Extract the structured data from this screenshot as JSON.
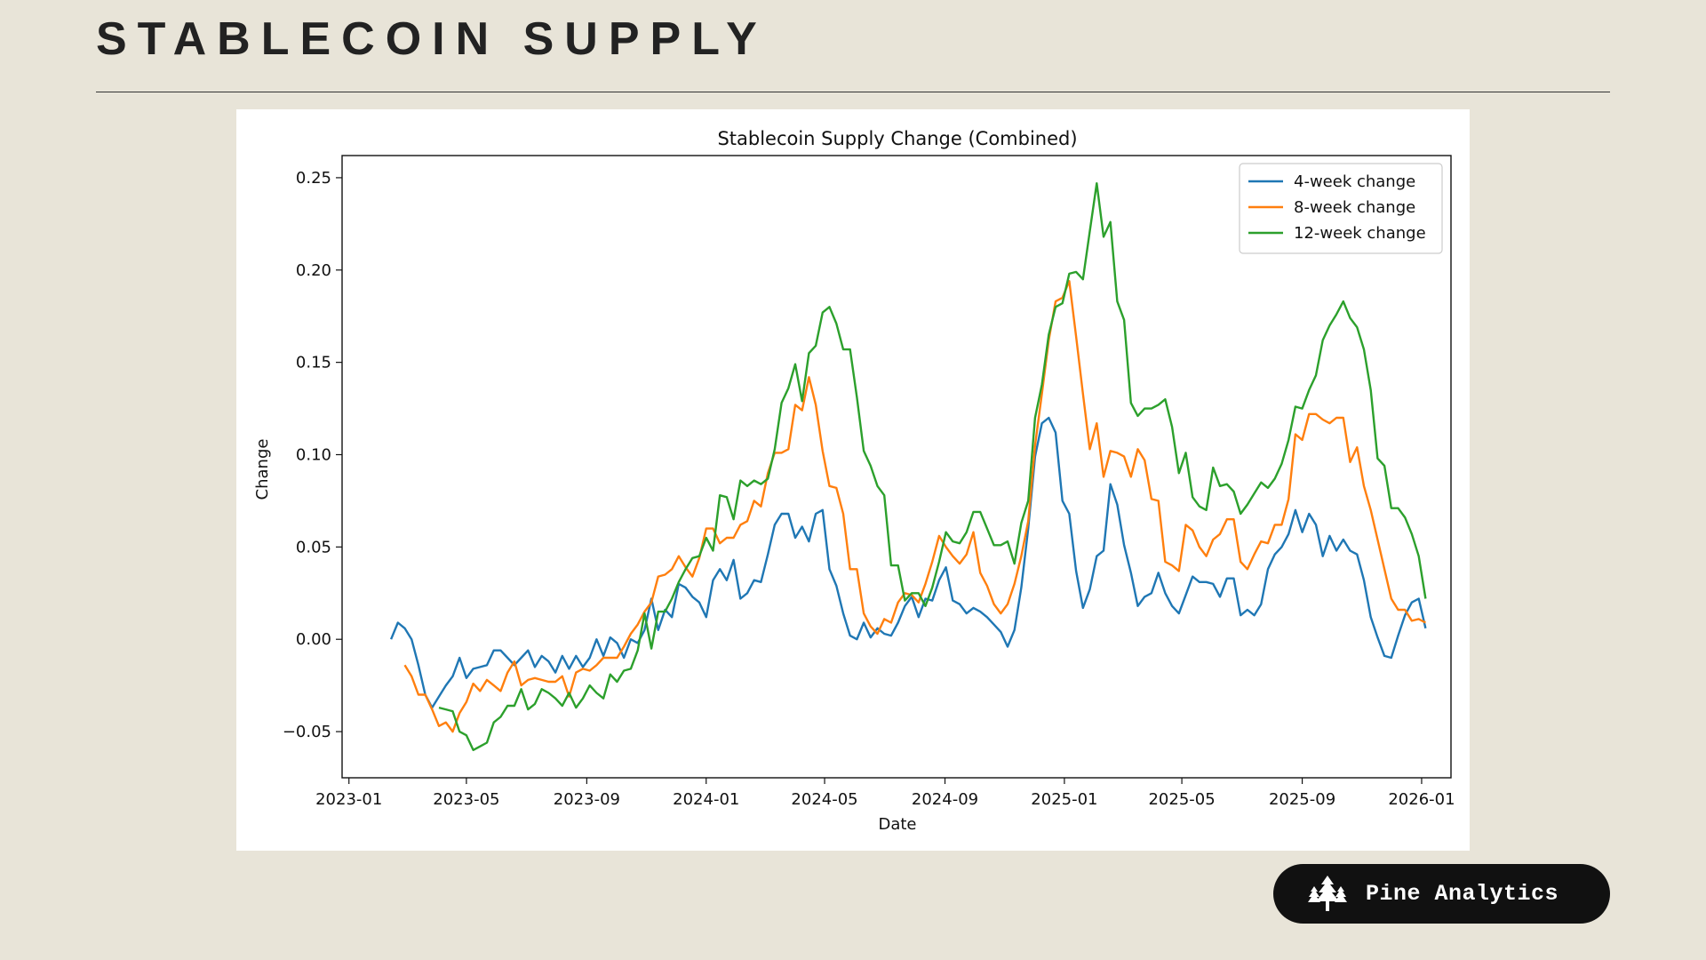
{
  "page": {
    "title": "STABLECOIN SUPPLY"
  },
  "brand": {
    "name": "Pine Analytics",
    "icon": "pine-tree-icon"
  },
  "chart_data": {
    "type": "line",
    "title": "Stablecoin Supply Change (Combined)",
    "xlabel": "Date",
    "ylabel": "Change",
    "xlim": [
      "2022-12-25",
      "2026-01-31"
    ],
    "ylim": [
      -0.075,
      0.262
    ],
    "x_ticks": [
      "2023-01",
      "2023-05",
      "2023-09",
      "2024-01",
      "2024-05",
      "2024-09",
      "2025-01",
      "2025-05",
      "2025-09",
      "2026-01"
    ],
    "y_ticks": [
      -0.05,
      0.0,
      0.05,
      0.1,
      0.15,
      0.2,
      0.25
    ],
    "y_tick_labels": [
      "−0.05",
      "0.00",
      "0.05",
      "0.10",
      "0.15",
      "0.20",
      "0.25"
    ],
    "legend_position": "top-right",
    "start_date": "2023-02-13",
    "step_days": 7,
    "series": [
      {
        "name": "4-week change",
        "color": "#1f77b4",
        "values": [
          0.0,
          0.009,
          0.006,
          0.0,
          -0.014,
          -0.03,
          -0.037,
          -0.031,
          -0.025,
          -0.02,
          -0.01,
          -0.021,
          -0.016,
          -0.015,
          -0.014,
          -0.006,
          -0.006,
          -0.01,
          -0.014,
          -0.01,
          -0.006,
          -0.015,
          -0.009,
          -0.012,
          -0.018,
          -0.009,
          -0.016,
          -0.009,
          -0.015,
          -0.01,
          0.0,
          -0.009,
          0.001,
          -0.002,
          -0.01,
          0.0,
          -0.002,
          0.005,
          0.022,
          0.005,
          0.016,
          0.012,
          0.03,
          0.028,
          0.023,
          0.02,
          0.012,
          0.032,
          0.038,
          0.032,
          0.043,
          0.022,
          0.025,
          0.032,
          0.031,
          0.046,
          0.062,
          0.068,
          0.068,
          0.055,
          0.061,
          0.053,
          0.068,
          0.07,
          0.038,
          0.029,
          0.014,
          0.002,
          0.0,
          0.009,
          0.001,
          0.006,
          0.003,
          0.002,
          0.009,
          0.018,
          0.023,
          0.012,
          0.022,
          0.021,
          0.032,
          0.039,
          0.021,
          0.019,
          0.014,
          0.017,
          0.015,
          0.012,
          0.008,
          0.004,
          -0.004,
          0.005,
          0.028,
          0.06,
          0.099,
          0.117,
          0.12,
          0.112,
          0.075,
          0.068,
          0.037,
          0.017,
          0.027,
          0.045,
          0.048,
          0.084,
          0.073,
          0.051,
          0.036,
          0.018,
          0.023,
          0.025,
          0.036,
          0.025,
          0.018,
          0.014,
          0.024,
          0.034,
          0.031,
          0.031,
          0.03,
          0.023,
          0.033,
          0.033,
          0.013,
          0.016,
          0.013,
          0.019,
          0.038,
          0.046,
          0.05,
          0.057,
          0.07,
          0.058,
          0.068,
          0.062,
          0.045,
          0.056,
          0.048,
          0.054,
          0.048,
          0.046,
          0.032,
          0.012,
          0.001,
          -0.009,
          -0.01,
          0.002,
          0.013,
          0.02,
          0.022,
          0.006
        ]
      },
      {
        "name": "8-week change",
        "color": "#ff7f0e",
        "values": [
          -0.014,
          -0.02,
          -0.03,
          -0.03,
          -0.038,
          -0.047,
          -0.045,
          -0.05,
          -0.04,
          -0.034,
          -0.024,
          -0.028,
          -0.022,
          -0.025,
          -0.028,
          -0.018,
          -0.012,
          -0.025,
          -0.022,
          -0.021,
          -0.022,
          -0.023,
          -0.023,
          -0.02,
          -0.031,
          -0.018,
          -0.016,
          -0.017,
          -0.014,
          -0.01,
          -0.01,
          -0.01,
          -0.004,
          0.003,
          0.008,
          0.015,
          0.02,
          0.034,
          0.035,
          0.038,
          0.045,
          0.039,
          0.034,
          0.044,
          0.06,
          0.06,
          0.052,
          0.055,
          0.055,
          0.062,
          0.064,
          0.075,
          0.072,
          0.09,
          0.101,
          0.101,
          0.103,
          0.127,
          0.124,
          0.142,
          0.127,
          0.102,
          0.083,
          0.082,
          0.068,
          0.038,
          0.038,
          0.014,
          0.007,
          0.003,
          0.011,
          0.009,
          0.02,
          0.025,
          0.024,
          0.02,
          0.03,
          0.042,
          0.056,
          0.05,
          0.045,
          0.041,
          0.046,
          0.058,
          0.036,
          0.029,
          0.019,
          0.014,
          0.019,
          0.03,
          0.045,
          0.064,
          0.105,
          0.133,
          0.162,
          0.183,
          0.185,
          0.194,
          0.164,
          0.133,
          0.103,
          0.117,
          0.088,
          0.102,
          0.101,
          0.099,
          0.088,
          0.103,
          0.097,
          0.076,
          0.075,
          0.042,
          0.04,
          0.037,
          0.062,
          0.059,
          0.05,
          0.045,
          0.054,
          0.057,
          0.065,
          0.065,
          0.042,
          0.038,
          0.046,
          0.053,
          0.052,
          0.062,
          0.062,
          0.076,
          0.111,
          0.108,
          0.122,
          0.122,
          0.119,
          0.117,
          0.12,
          0.12,
          0.096,
          0.104,
          0.083,
          0.07,
          0.054,
          0.038,
          0.022,
          0.016,
          0.016,
          0.01,
          0.011,
          0.009
        ]
      },
      {
        "name": "12-week change",
        "color": "#2ca02c",
        "values": [
          -0.037,
          -0.038,
          -0.039,
          -0.05,
          -0.052,
          -0.06,
          -0.058,
          -0.056,
          -0.045,
          -0.042,
          -0.036,
          -0.036,
          -0.027,
          -0.038,
          -0.035,
          -0.027,
          -0.029,
          -0.032,
          -0.036,
          -0.029,
          -0.037,
          -0.032,
          -0.025,
          -0.029,
          -0.032,
          -0.019,
          -0.023,
          -0.017,
          -0.016,
          -0.006,
          0.014,
          -0.005,
          0.015,
          0.015,
          0.022,
          0.031,
          0.038,
          0.044,
          0.045,
          0.055,
          0.048,
          0.078,
          0.077,
          0.065,
          0.086,
          0.083,
          0.086,
          0.084,
          0.087,
          0.103,
          0.128,
          0.136,
          0.149,
          0.129,
          0.155,
          0.159,
          0.177,
          0.18,
          0.171,
          0.157,
          0.157,
          0.131,
          0.102,
          0.094,
          0.083,
          0.078,
          0.04,
          0.04,
          0.021,
          0.025,
          0.025,
          0.018,
          0.028,
          0.042,
          0.058,
          0.053,
          0.052,
          0.058,
          0.069,
          0.069,
          0.06,
          0.051,
          0.051,
          0.053,
          0.041,
          0.063,
          0.075,
          0.12,
          0.138,
          0.165,
          0.18,
          0.182,
          0.198,
          0.199,
          0.195,
          0.221,
          0.247,
          0.218,
          0.226,
          0.183,
          0.173,
          0.128,
          0.121,
          0.125,
          0.125,
          0.127,
          0.13,
          0.115,
          0.09,
          0.101,
          0.077,
          0.072,
          0.07,
          0.093,
          0.083,
          0.084,
          0.08,
          0.068,
          0.073,
          0.079,
          0.085,
          0.082,
          0.087,
          0.095,
          0.108,
          0.126,
          0.125,
          0.135,
          0.143,
          0.162,
          0.17,
          0.176,
          0.183,
          0.174,
          0.169,
          0.157,
          0.135,
          0.098,
          0.094,
          0.071,
          0.071,
          0.066,
          0.057,
          0.045,
          0.022
        ]
      }
    ]
  }
}
